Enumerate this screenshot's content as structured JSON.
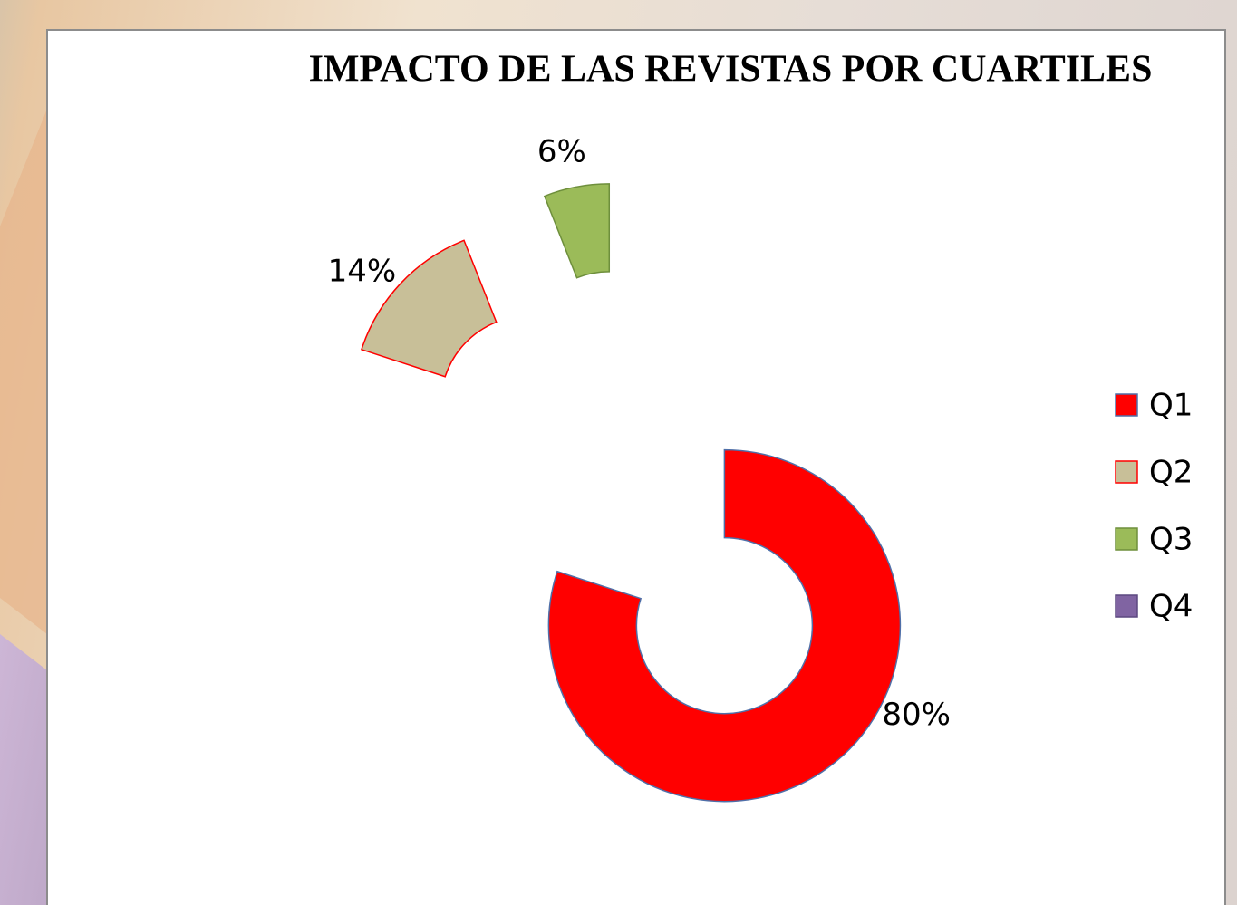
{
  "chart_data": {
    "type": "donut",
    "title": "IMPACTO DE LAS REVISTAS POR CUARTILES",
    "categories": [
      "Q1",
      "Q2",
      "Q3",
      "Q4"
    ],
    "values": [
      80,
      14,
      6,
      0
    ],
    "value_labels": [
      "80%",
      "14%",
      "6%",
      null
    ],
    "colors": [
      "#ff0000",
      "#c8bf98",
      "#9bbb59",
      "#8064a2"
    ],
    "edge_colors": [
      "#4f6fa8",
      "#ff0000",
      "#6e8f3c",
      "#5c4880"
    ],
    "exploded": true,
    "legend": "right"
  }
}
